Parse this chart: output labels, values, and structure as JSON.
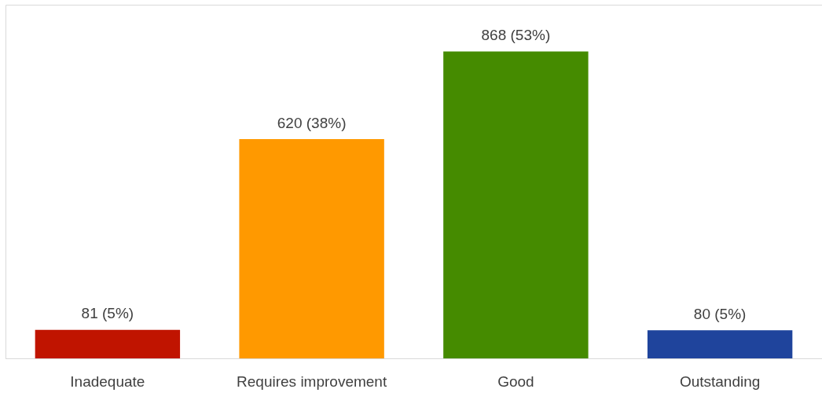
{
  "chart_data": {
    "type": "bar",
    "categories": [
      "Inadequate",
      "Requires improvement",
      "Good",
      "Outstanding"
    ],
    "values": [
      81,
      620,
      868,
      80
    ],
    "colors": [
      "#c01400",
      "#ff9900",
      "#458b00",
      "#1f449c"
    ],
    "value_labels": [
      "81 (5%)",
      "620 (38%)",
      "868 (53%)",
      "80 (5%)"
    ],
    "ylim": [
      0,
      1000
    ]
  }
}
